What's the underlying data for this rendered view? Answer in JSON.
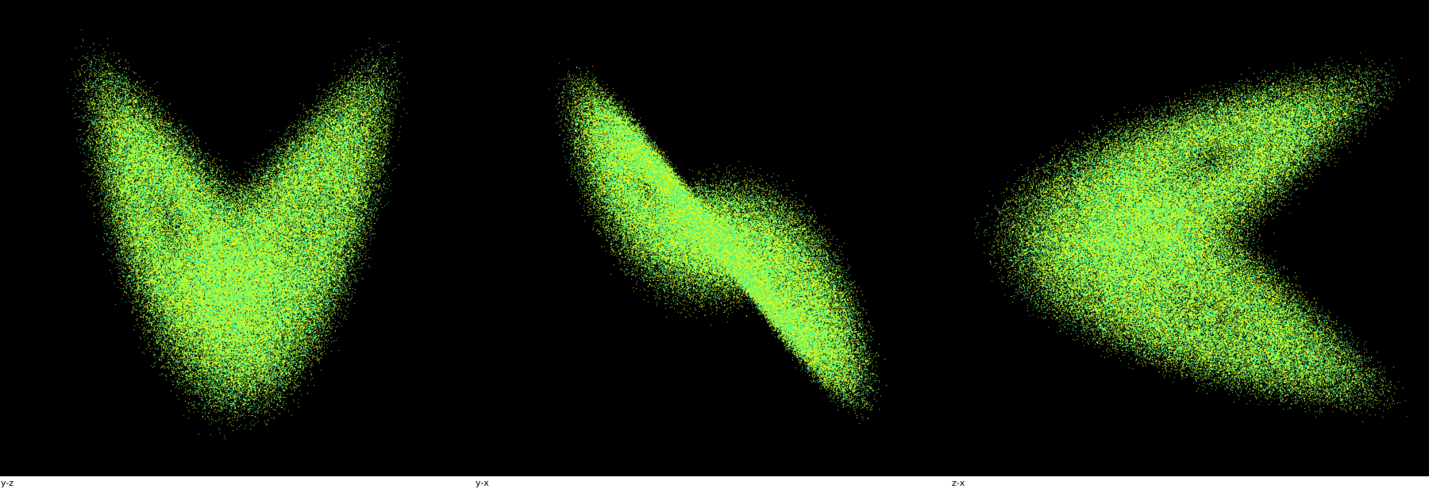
{
  "panels": [
    {
      "label": "y-z"
    },
    {
      "label": "y-x"
    },
    {
      "label": "z-x"
    }
  ],
  "colors": {
    "background": "#000000",
    "point_primary": "#9cf046",
    "point_secondary": "#ffff00",
    "point_tertiary": "#00f0b4"
  }
}
